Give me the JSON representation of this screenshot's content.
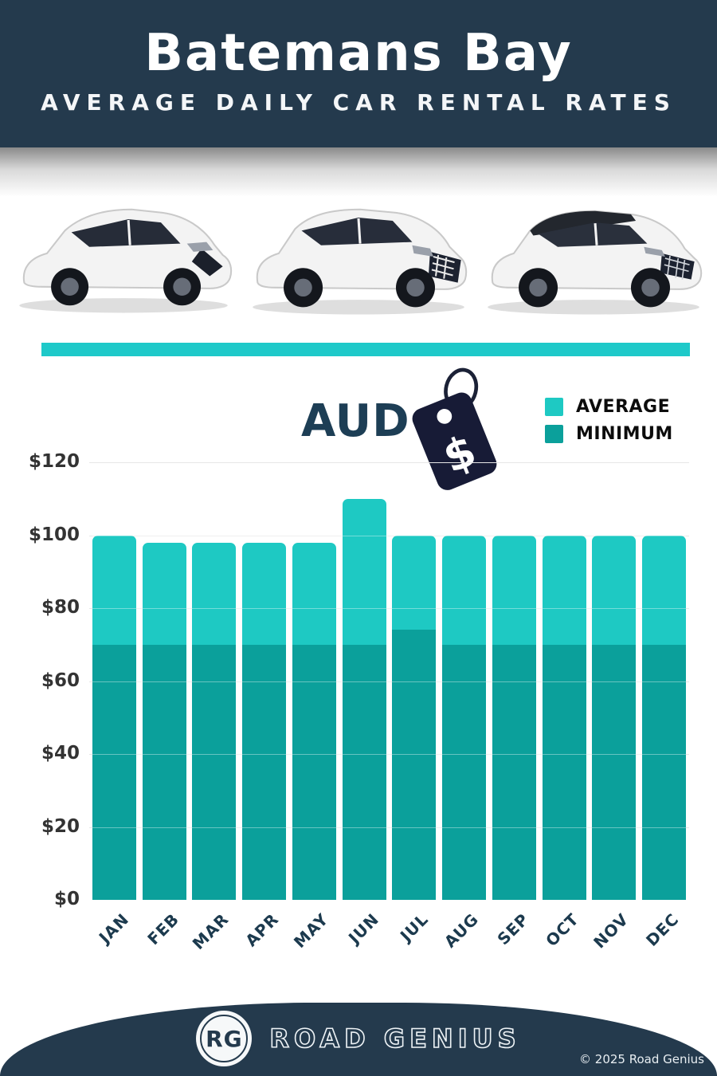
{
  "header": {
    "title": "Batemans Bay",
    "subtitle": "AVERAGE DAILY CAR RENTAL RATES"
  },
  "currency_badge": {
    "label": "AUD",
    "icon": "price-tag-dollar-icon"
  },
  "legend": {
    "items": [
      {
        "label": "AVERAGE",
        "color": "#1ec9c3"
      },
      {
        "label": "MINIMUM",
        "color": "#0ba09b"
      }
    ]
  },
  "chart_data": {
    "type": "bar",
    "title": "Batemans Bay Average Daily Car Rental Rates",
    "currency": "AUD",
    "categories": [
      "JAN",
      "FEB",
      "MAR",
      "APR",
      "MAY",
      "JUN",
      "JUL",
      "AUG",
      "SEP",
      "OCT",
      "NOV",
      "DEC"
    ],
    "series": [
      {
        "name": "AVERAGE",
        "color": "#1ec9c3",
        "values": [
          100,
          98,
          98,
          98,
          98,
          110,
          100,
          100,
          100,
          100,
          100,
          100
        ]
      },
      {
        "name": "MINIMUM",
        "color": "#0ba09b",
        "values": [
          70,
          70,
          70,
          70,
          70,
          70,
          74,
          70,
          70,
          70,
          70,
          70
        ]
      }
    ],
    "ylim": [
      0,
      120
    ],
    "ytick_step": 20,
    "ytick_prefix": "$",
    "grid": true,
    "legend_position": "top-right"
  },
  "decor": {
    "car_icons": [
      "white-hatchback-car-icon",
      "white-suv-car-icon",
      "white-suv-black-roof-car-icon"
    ],
    "divider_color": "#1ec9c9",
    "header_bg": "#243a4d",
    "tag_color": "#171b36"
  },
  "footer": {
    "logo_initials": "RG",
    "brand": "ROAD GENIUS",
    "copyright": "© 2025 Road Genius"
  }
}
